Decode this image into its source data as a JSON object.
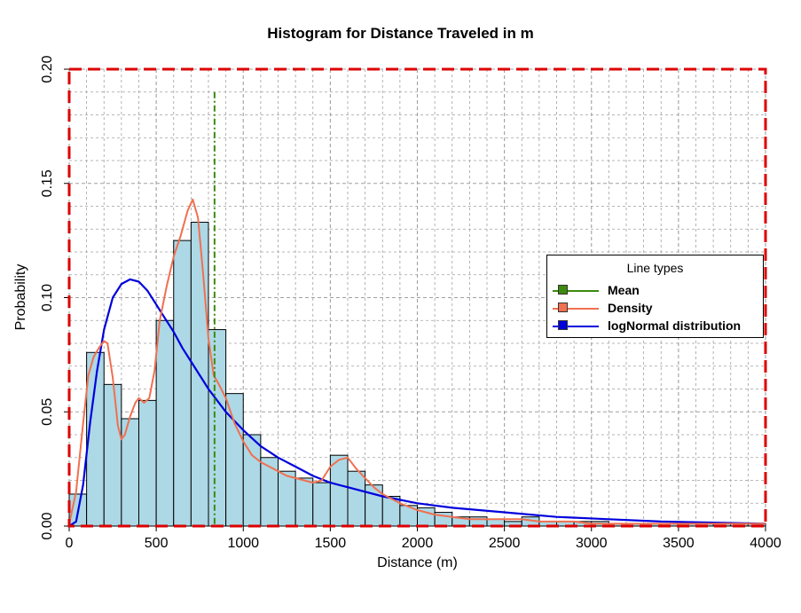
{
  "chart_data": {
    "type": "bar",
    "title": "Histogram for Distance Traveled in m",
    "xlabel": "Distance (m)",
    "ylabel": "Probability",
    "xlim": [
      0,
      4000
    ],
    "ylim": [
      0,
      0.2
    ],
    "x_ticks": [
      0,
      500,
      1000,
      1500,
      2000,
      2500,
      3000,
      3500,
      4000
    ],
    "y_ticks": [
      0.0,
      0.05,
      0.1,
      0.15,
      0.2
    ],
    "y_tick_labels": [
      "0.00",
      "0.05",
      "0.10",
      "0.15",
      "0.20"
    ],
    "grid": true,
    "bin_width": 100,
    "bins_start": [
      0,
      100,
      200,
      300,
      400,
      500,
      600,
      700,
      800,
      900,
      1000,
      1100,
      1200,
      1300,
      1400,
      1500,
      1600,
      1700,
      1800,
      1900,
      2000,
      2100,
      2200,
      2300,
      2400,
      2500,
      2600,
      2700,
      2800,
      2900,
      3000,
      3100,
      3200,
      3300,
      3400,
      3500,
      3600,
      3700,
      3800,
      3900
    ],
    "values": [
      0.014,
      0.076,
      0.062,
      0.047,
      0.055,
      0.09,
      0.125,
      0.133,
      0.086,
      0.058,
      0.04,
      0.03,
      0.024,
      0.021,
      0.019,
      0.031,
      0.024,
      0.018,
      0.013,
      0.009,
      0.008,
      0.006,
      0.004,
      0.004,
      0.003,
      0.002,
      0.004,
      0.002,
      0.002,
      0.002,
      0.002,
      0.001,
      0.001,
      0.001,
      0.001,
      0.001,
      0.001,
      0.001,
      0.001,
      0.001
    ],
    "mean": 835,
    "density": {
      "x": [
        0,
        40,
        80,
        110,
        140,
        170,
        200,
        220,
        250,
        280,
        300,
        320,
        350,
        380,
        400,
        430,
        460,
        490,
        520,
        560,
        600,
        640,
        680,
        710,
        740,
        770,
        800,
        830,
        860,
        900,
        950,
        1000,
        1050,
        1100,
        1150,
        1200,
        1250,
        1300,
        1350,
        1400,
        1450,
        1500,
        1550,
        1600,
        1650,
        1700,
        1750,
        1800,
        1850,
        1900,
        2000,
        2100,
        2200,
        2300,
        2400,
        2500,
        2600,
        2700,
        2800,
        2900,
        3000,
        3200,
        3400,
        3600,
        3800,
        4000
      ],
      "y": [
        0.001,
        0.015,
        0.045,
        0.066,
        0.074,
        0.078,
        0.081,
        0.08,
        0.065,
        0.044,
        0.038,
        0.04,
        0.048,
        0.054,
        0.056,
        0.054,
        0.056,
        0.068,
        0.09,
        0.105,
        0.118,
        0.127,
        0.138,
        0.143,
        0.135,
        0.11,
        0.082,
        0.066,
        0.062,
        0.056,
        0.045,
        0.037,
        0.031,
        0.028,
        0.026,
        0.024,
        0.022,
        0.021,
        0.02,
        0.019,
        0.02,
        0.026,
        0.029,
        0.03,
        0.025,
        0.021,
        0.017,
        0.014,
        0.012,
        0.01,
        0.007,
        0.005,
        0.004,
        0.003,
        0.003,
        0.003,
        0.003,
        0.002,
        0.002,
        0.002,
        0.001,
        0.001,
        0.001,
        0.001,
        0.001,
        0.001
      ]
    },
    "lognormal": {
      "x": [
        0,
        40,
        80,
        120,
        160,
        200,
        250,
        300,
        350,
        400,
        450,
        500,
        550,
        600,
        650,
        700,
        750,
        800,
        850,
        900,
        950,
        1000,
        1100,
        1200,
        1300,
        1400,
        1500,
        1600,
        1800,
        2000,
        2200,
        2500,
        2800,
        3100,
        3400,
        3700,
        4000
      ],
      "y": [
        0.0,
        0.002,
        0.018,
        0.045,
        0.068,
        0.086,
        0.1,
        0.106,
        0.108,
        0.107,
        0.103,
        0.097,
        0.091,
        0.085,
        0.078,
        0.072,
        0.066,
        0.06,
        0.055,
        0.05,
        0.046,
        0.042,
        0.035,
        0.03,
        0.026,
        0.022,
        0.019,
        0.017,
        0.013,
        0.01,
        0.008,
        0.006,
        0.004,
        0.003,
        0.002,
        0.0015,
        0.001
      ]
    },
    "legend": {
      "title": "Line types",
      "position": "right",
      "entries": [
        {
          "label": "Mean",
          "color": "#3c8a0e"
        },
        {
          "label": "Density",
          "color": "#f07050"
        },
        {
          "label": "logNormal distribution",
          "color": "#0000dd"
        }
      ]
    },
    "colors": {
      "bar_fill": "#add8e6",
      "bar_edge": "#000000",
      "mean": "#3c8a0e",
      "density": "#f07050",
      "lognormal": "#0000dd",
      "border": "#dd0000",
      "grid": "#a0a0a0"
    }
  }
}
